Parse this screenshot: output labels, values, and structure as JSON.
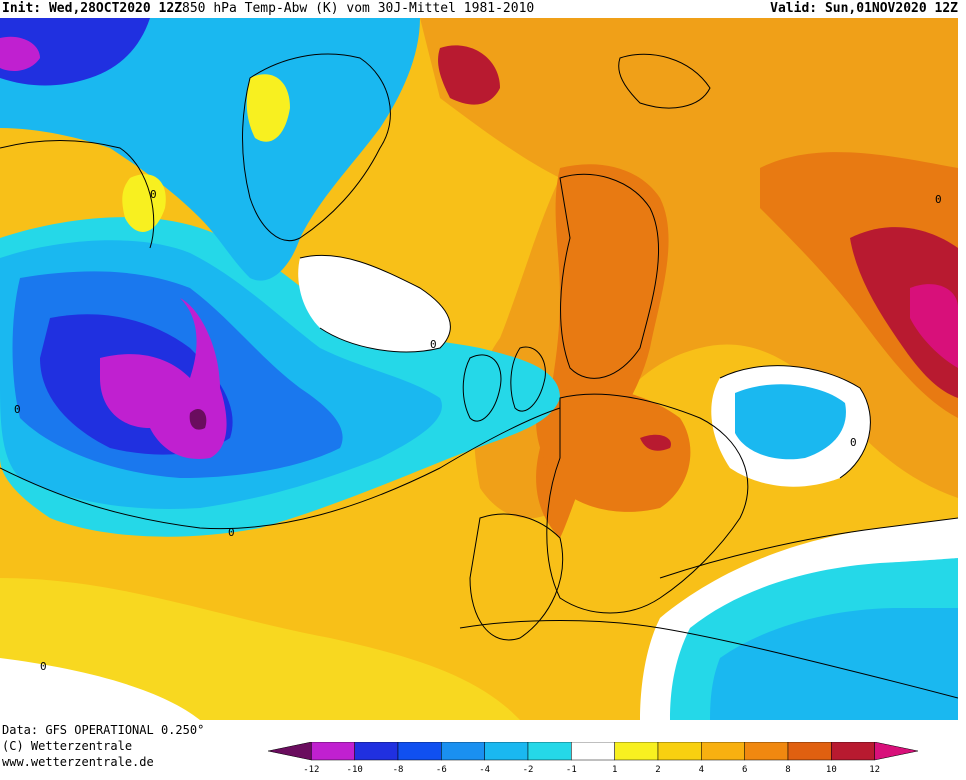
{
  "header": {
    "init_label": "Init:",
    "init_value": "Wed,28OCT2020 12Z",
    "title": "850 hPa Temp-Abw (K) vom 30J-Mittel 1981-2010",
    "valid_label": "Valid:",
    "valid_value": "Sun,01NOV2020 12Z"
  },
  "footer": {
    "data_line": "Data: GFS OPERATIONAL 0.250°",
    "copyright": "(C) Wetterzentrale",
    "url": "www.wetterzentrale.de"
  },
  "map": {
    "contour_labels": [
      "0",
      "0",
      "0",
      "0",
      "0",
      "0",
      "0"
    ]
  },
  "legend": {
    "tick_labels": [
      "-12",
      "-10",
      "-8",
      "-6",
      "-4",
      "-2",
      "-1",
      "1",
      "2",
      "4",
      "6",
      "8",
      "10",
      "12"
    ],
    "bin_colors": [
      "#6a0d5e",
      "#c020d0",
      "#2030e0",
      "#1050f0",
      "#1a90f0",
      "#1ab8f0",
      "#25d8e8",
      "#ffffff",
      "#f8f020",
      "#f8d010",
      "#f8b010",
      "#f08810",
      "#e06010",
      "#b81a30",
      "#d8107a"
    ]
  },
  "colors": {
    "ocean_base": "#f8b818",
    "cold_deep": "#c020d0",
    "cold": "#1a90f0",
    "warm": "#f08810",
    "hot": "#b81a30"
  }
}
